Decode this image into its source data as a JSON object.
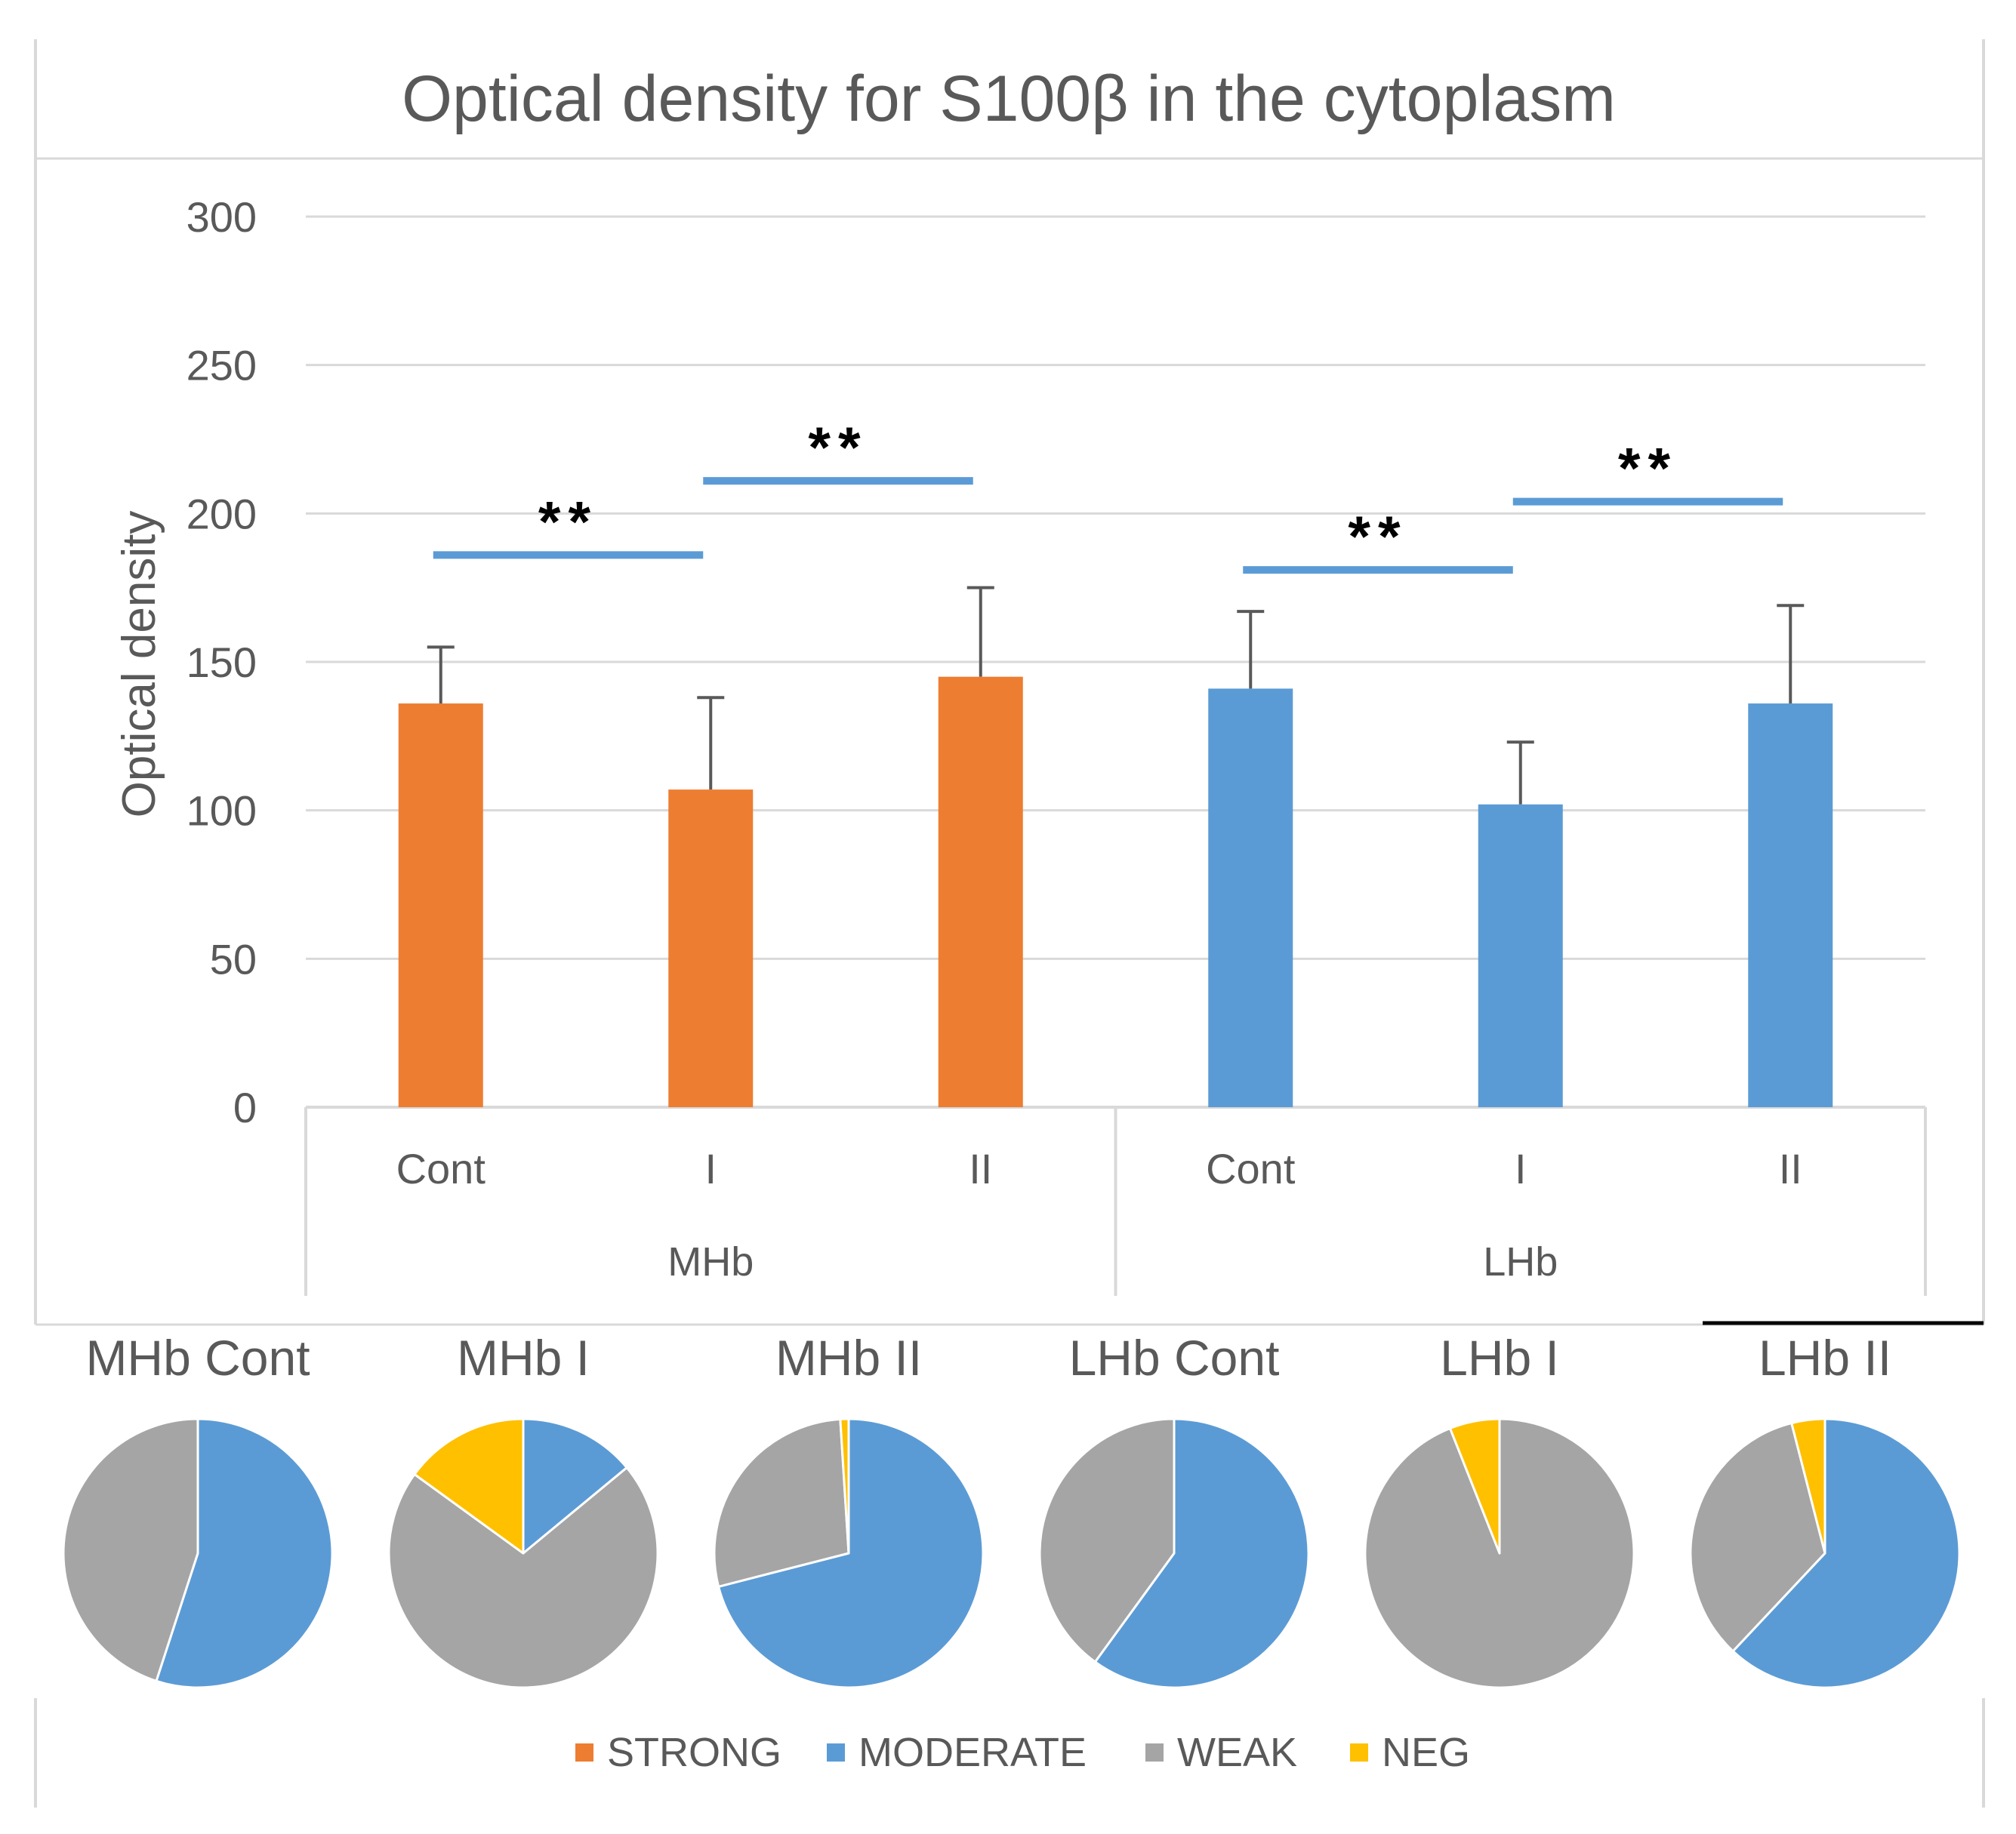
{
  "chart_data": [
    {
      "type": "bar",
      "title": "Optical density for S100β in the cytoplasm",
      "ylabel": "Optical density",
      "xlabel": "",
      "ylim": [
        0,
        300
      ],
      "yticks": [
        0,
        50,
        100,
        150,
        200,
        250,
        300
      ],
      "grid": true,
      "groups": [
        {
          "name": "MHb",
          "color": "#ED7D31",
          "categories": [
            "Cont",
            "I",
            "II"
          ],
          "values": [
            136,
            107,
            145
          ],
          "errors": [
            19,
            31,
            30
          ]
        },
        {
          "name": "LHb",
          "color": "#5B9BD5",
          "categories": [
            "Cont",
            "I",
            "II"
          ],
          "values": [
            141,
            102,
            136
          ],
          "errors": [
            26,
            21,
            33
          ]
        }
      ],
      "significance": [
        {
          "group": 0,
          "from": 0,
          "to": 1,
          "y": 186,
          "label": "**"
        },
        {
          "group": 0,
          "from": 1,
          "to": 2,
          "y": 211,
          "label": "**"
        },
        {
          "group": 1,
          "from": 0,
          "to": 1,
          "y": 181,
          "label": "**"
        },
        {
          "group": 1,
          "from": 1,
          "to": 2,
          "y": 204,
          "label": "**"
        }
      ],
      "significance_color": "#5B9BD5"
    },
    {
      "type": "pie",
      "legend": [
        {
          "label": "STRONG",
          "color": "#ED7D31"
        },
        {
          "label": "MODERATE",
          "color": "#5B9BD5"
        },
        {
          "label": "WEAK",
          "color": "#A5A5A5"
        },
        {
          "label": "NEG",
          "color": "#FFC000"
        }
      ],
      "pies": [
        {
          "title": "MHb Cont",
          "slices": [
            {
              "label": "STRONG",
              "value": 0
            },
            {
              "label": "MODERATE",
              "value": 55
            },
            {
              "label": "WEAK",
              "value": 45
            },
            {
              "label": "NEG",
              "value": 0
            }
          ]
        },
        {
          "title": "MHb I",
          "slices": [
            {
              "label": "STRONG",
              "value": 0
            },
            {
              "label": "MODERATE",
              "value": 14
            },
            {
              "label": "WEAK",
              "value": 71
            },
            {
              "label": "NEG",
              "value": 15
            }
          ]
        },
        {
          "title": "MHb II",
          "slices": [
            {
              "label": "STRONG",
              "value": 0
            },
            {
              "label": "MODERATE",
              "value": 71
            },
            {
              "label": "WEAK",
              "value": 28
            },
            {
              "label": "NEG",
              "value": 1
            }
          ]
        },
        {
          "title": "LHb Cont",
          "slices": [
            {
              "label": "STRONG",
              "value": 0
            },
            {
              "label": "MODERATE",
              "value": 60
            },
            {
              "label": "WEAK",
              "value": 40
            },
            {
              "label": "NEG",
              "value": 0
            }
          ]
        },
        {
          "title": "LHb I",
          "slices": [
            {
              "label": "STRONG",
              "value": 0
            },
            {
              "label": "MODERATE",
              "value": 0
            },
            {
              "label": "WEAK",
              "value": 94
            },
            {
              "label": "NEG",
              "value": 6
            }
          ]
        },
        {
          "title": "LHb II",
          "slices": [
            {
              "label": "STRONG",
              "value": 0
            },
            {
              "label": "MODERATE",
              "value": 62
            },
            {
              "label": "WEAK",
              "value": 34
            },
            {
              "label": "NEG",
              "value": 4
            }
          ]
        }
      ]
    }
  ]
}
